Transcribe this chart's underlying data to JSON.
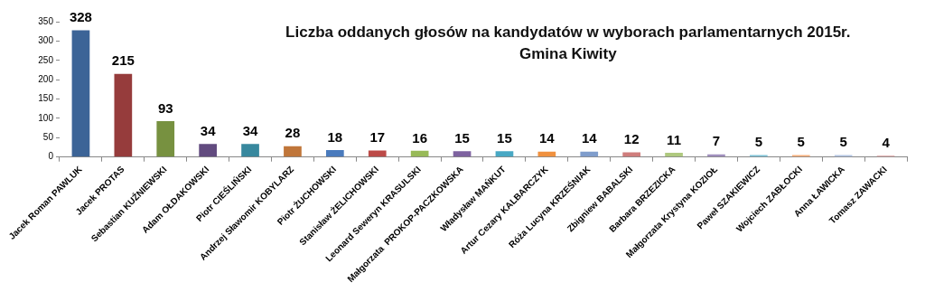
{
  "chart_data": {
    "type": "bar",
    "title": "Liczba oddanych głosów na kandydatów w wyborach parlamentarnych 2015r.",
    "subtitle": "Gmina Kiwity",
    "categories": [
      "Jacek Roman PAWLUK",
      "Jacek PROTAS",
      "Sebastian KUŹNIEWSKI",
      "Adam OŁDAKOWSKI",
      "Piotr CIEŚLIŃSKI",
      "Andrzej Sławomir KOBYLARZ",
      "Piotr ŻUCHOWSKI",
      "Stanisław ŻELICHOWSKI",
      "Leonard Seweryn KRASULSKI",
      "Małgorzata  PROKOP-PACZKOWSKA",
      "Władysław MAŃKUT",
      "Artur Cezary KALBARCZYK",
      "Róża Lucyna KRZEŚNIAK",
      "Zbigniew BABALSKI",
      "Barbara BRZEZICKA",
      "Małgorzata Krystyna KOZIOŁ",
      "Paweł SZAKIEWICZ",
      "Wojciech ZABŁOCKI",
      "Anna ŁAWICKA",
      "Tomasz ZAWACKI"
    ],
    "values": [
      328,
      215,
      93,
      34,
      34,
      28,
      18,
      17,
      16,
      15,
      15,
      14,
      14,
      12,
      11,
      7,
      5,
      5,
      5,
      4
    ],
    "colors": [
      "#3c6497",
      "#963c3c",
      "#779140",
      "#624b7f",
      "#37889e",
      "#c0763a",
      "#4a7bbd",
      "#bc4a47",
      "#98ba58",
      "#7e62a0",
      "#48a8c4",
      "#f0913f",
      "#7f9dcc",
      "#cf7d7c",
      "#afc97f",
      "#a08fbd",
      "#7ec3d8",
      "#f8b07c",
      "#b4c6e4",
      "#e3b3b3"
    ],
    "ylim": [
      0,
      350
    ],
    "yticks": [
      0,
      50,
      100,
      150,
      200,
      250,
      300,
      350
    ],
    "data_labels": true,
    "legend": false,
    "grid": false
  }
}
